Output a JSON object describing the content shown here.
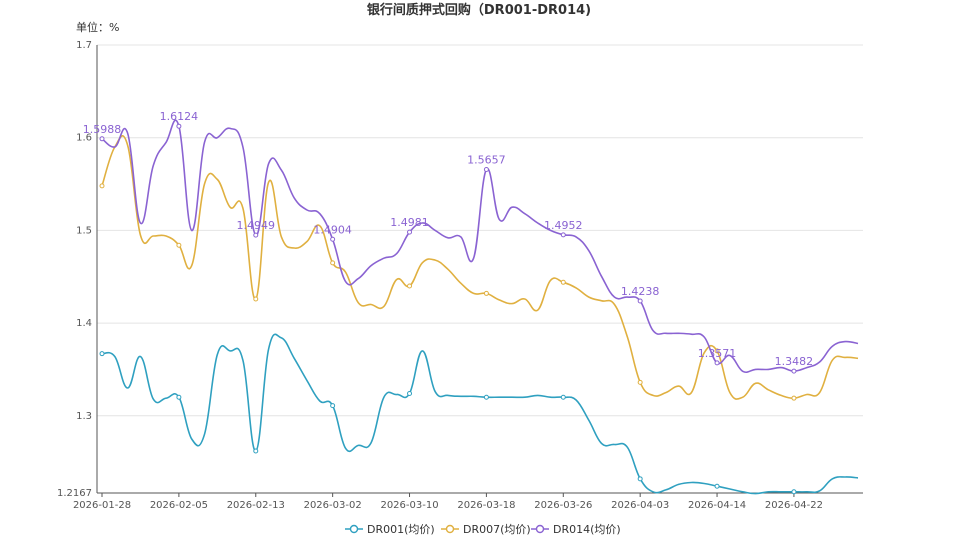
{
  "chart_data": {
    "type": "line",
    "title": "银行间质押式回购（DR001-DR014)",
    "unit_label": "单位：%",
    "ylim": [
      1.2167,
      1.7
    ],
    "yticks": [
      "1.2167",
      "1.3",
      "1.4",
      "1.5",
      "1.6",
      "1.7"
    ],
    "xticks": [
      "2026-01-28",
      "2026-02-05",
      "2026-02-13",
      "2026-03-02",
      "2026-03-10",
      "2026-03-18",
      "2026-03-26",
      "2026-04-03",
      "2026-04-14",
      "2026-04-22"
    ],
    "grid": true,
    "legend_position": "bottom",
    "x": [
      "2026-01-28",
      "2026-01-29",
      "2026-01-30",
      "2026-02-02",
      "2026-02-03",
      "2026-02-04",
      "2026-02-05",
      "2026-02-06",
      "2026-02-09",
      "2026-02-10",
      "2026-02-11",
      "2026-02-12",
      "2026-02-13",
      "2026-02-14",
      "2026-02-24",
      "2026-02-25",
      "2026-02-26",
      "2026-02-27",
      "2026-03-02",
      "2026-03-03",
      "2026-03-04",
      "2026-03-05",
      "2026-03-06",
      "2026-03-09",
      "2026-03-10",
      "2026-03-11",
      "2026-03-12",
      "2026-03-13",
      "2026-03-16",
      "2026-03-17",
      "2026-03-18",
      "2026-03-19",
      "2026-03-20",
      "2026-03-23",
      "2026-03-24",
      "2026-03-25",
      "2026-03-26",
      "2026-03-27",
      "2026-03-30",
      "2026-03-31",
      "2026-04-01",
      "2026-04-02",
      "2026-04-03",
      "2026-04-07",
      "2026-04-08",
      "2026-04-09",
      "2026-04-10",
      "2026-04-13",
      "2026-04-14",
      "2026-04-15",
      "2026-04-16",
      "2026-04-17",
      "2026-04-20",
      "2026-04-21",
      "2026-04-22",
      "2026-04-23",
      "2026-04-24",
      "2026-04-27",
      "2026-04-28",
      "2026-04-29"
    ],
    "series": [
      {
        "name": "DR001(均价)",
        "color": "#2fa0c0",
        "values": [
          1.367,
          1.364,
          1.33,
          1.364,
          1.318,
          1.319,
          1.32,
          1.275,
          1.28,
          1.366,
          1.37,
          1.36,
          1.262,
          1.372,
          1.384,
          1.362,
          1.338,
          1.316,
          1.311,
          1.265,
          1.268,
          1.271,
          1.32,
          1.323,
          1.324,
          1.37,
          1.326,
          1.322,
          1.321,
          1.321,
          1.32,
          1.32,
          1.32,
          1.32,
          1.322,
          1.32,
          1.32,
          1.317,
          1.295,
          1.27,
          1.269,
          1.266,
          1.232,
          1.218,
          1.22,
          1.226,
          1.228,
          1.227,
          1.224,
          1.221,
          1.218,
          1.216,
          1.218,
          1.218,
          1.218,
          1.218,
          1.219,
          1.232,
          1.234,
          1.233
        ],
        "labels": {}
      },
      {
        "name": "DR007(均价)",
        "color": "#e0b040",
        "values": [
          1.548,
          1.59,
          1.592,
          1.495,
          1.494,
          1.494,
          1.484,
          1.462,
          1.55,
          1.555,
          1.525,
          1.524,
          1.426,
          1.552,
          1.493,
          1.481,
          1.488,
          1.505,
          1.465,
          1.455,
          1.422,
          1.42,
          1.418,
          1.447,
          1.44,
          1.465,
          1.468,
          1.458,
          1.443,
          1.432,
          1.432,
          1.425,
          1.421,
          1.426,
          1.414,
          1.446,
          1.444,
          1.438,
          1.428,
          1.424,
          1.42,
          1.385,
          1.336,
          1.322,
          1.325,
          1.332,
          1.325,
          1.368,
          1.37,
          1.325,
          1.32,
          1.335,
          1.328,
          1.322,
          1.319,
          1.323,
          1.325,
          1.36,
          1.363,
          1.362
        ],
        "labels": {}
      },
      {
        "name": "DR014(均价)",
        "color": "#8a63d2",
        "values": [
          1.5988,
          1.59,
          1.605,
          1.508,
          1.57,
          1.595,
          1.6124,
          1.5,
          1.595,
          1.6,
          1.61,
          1.59,
          1.4949,
          1.572,
          1.565,
          1.535,
          1.522,
          1.518,
          1.4904,
          1.445,
          1.448,
          1.462,
          1.47,
          1.475,
          1.4981,
          1.508,
          1.5,
          1.492,
          1.493,
          1.47,
          1.5657,
          1.512,
          1.525,
          1.518,
          1.508,
          1.5,
          1.4952,
          1.493,
          1.478,
          1.45,
          1.428,
          1.428,
          1.4238,
          1.392,
          1.389,
          1.389,
          1.388,
          1.385,
          1.3571,
          1.365,
          1.348,
          1.35,
          1.35,
          1.352,
          1.3482,
          1.352,
          1.358,
          1.375,
          1.38,
          1.378
        ],
        "labels": {
          "0": "1.5988",
          "6": "1.6124",
          "12": "1.4949",
          "18": "1.4904",
          "24": "1.4981",
          "30": "1.5657",
          "36": "1.4952",
          "42": "1.4238",
          "48": "1.3571",
          "54": "1.3482"
        }
      }
    ]
  }
}
